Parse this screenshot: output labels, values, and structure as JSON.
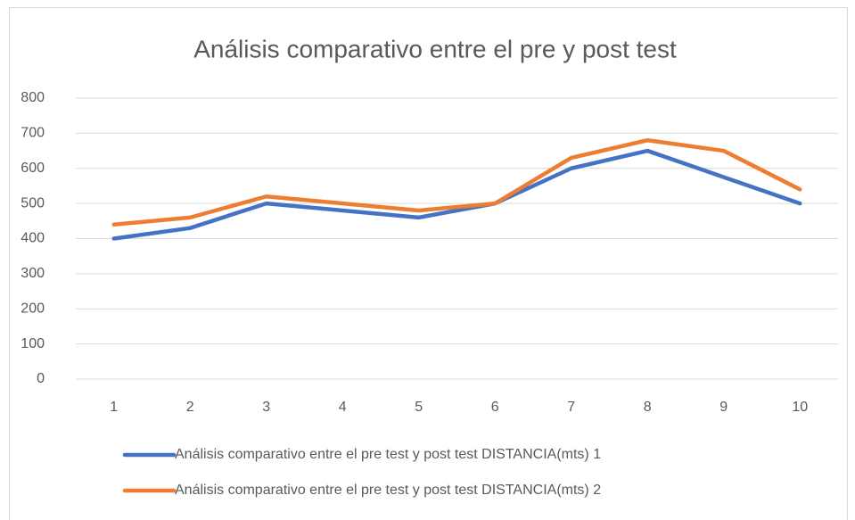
{
  "chart_data": {
    "type": "line",
    "title": "Análisis comparativo entre el pre y post test",
    "categories": [
      1,
      2,
      3,
      4,
      5,
      6,
      7,
      8,
      9,
      10
    ],
    "series": [
      {
        "name": "Análisis comparativo entre el pre test y post test DISTANCIA(mts) 1",
        "color": "#4472c4",
        "values": [
          400,
          430,
          500,
          480,
          460,
          500,
          600,
          650,
          575,
          500
        ]
      },
      {
        "name": "Análisis comparativo entre el pre test y post test DISTANCIA(mts) 2",
        "color": "#ed7d31",
        "values": [
          440,
          460,
          520,
          500,
          480,
          500,
          630,
          680,
          650,
          540
        ]
      }
    ],
    "ylim": [
      0,
      800
    ],
    "yticks": [
      0,
      100,
      200,
      300,
      400,
      500,
      600,
      700,
      800
    ],
    "grid": true
  }
}
